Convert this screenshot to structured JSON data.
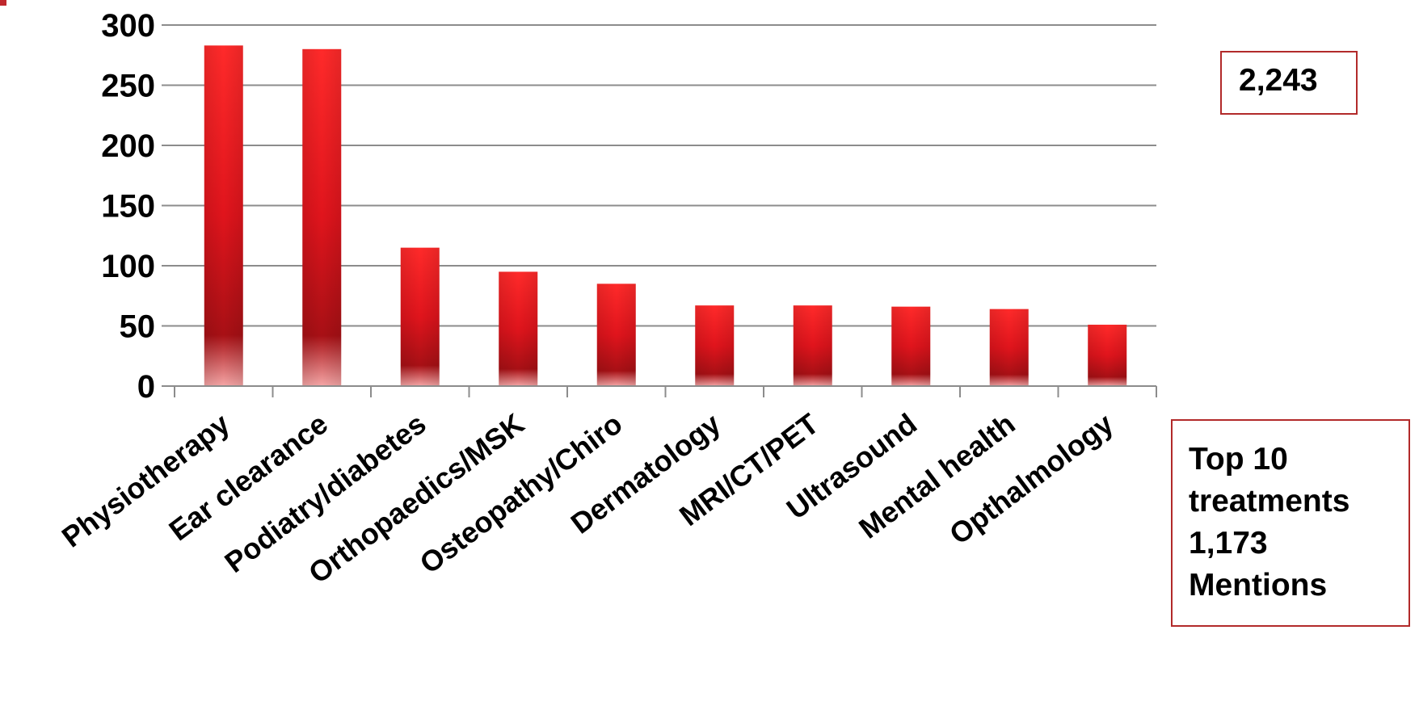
{
  "chart_data": {
    "type": "bar",
    "categories": [
      "Physiotherapy",
      "Ear clearance",
      "Podiatry/diabetes",
      "Orthopaedics/MSK",
      "Osteopathy/Chiro",
      "Dermatology",
      "MRI/CT/PET",
      "Ultrasound",
      "Mental health",
      "Opthalmology"
    ],
    "values": [
      283,
      280,
      115,
      95,
      85,
      67,
      67,
      66,
      64,
      51
    ],
    "ylim": [
      0,
      300
    ],
    "yticks": [
      0,
      50,
      100,
      150,
      200,
      250,
      300
    ],
    "grid": true,
    "legend": "none",
    "bar_color": "#ee1c24",
    "bar_dark_color": "#a50f12",
    "title": "",
    "xlabel": "",
    "ylabel": ""
  },
  "callouts": {
    "total": "2,243",
    "summary": [
      "Top 10",
      "treatments",
      "1,173",
      "Mentions"
    ]
  },
  "colors": {
    "gridline": "#8c8c8c",
    "axis": "#8c8c8c",
    "callout_border": "#b22a2a",
    "corner_mark": "#c0282d"
  }
}
